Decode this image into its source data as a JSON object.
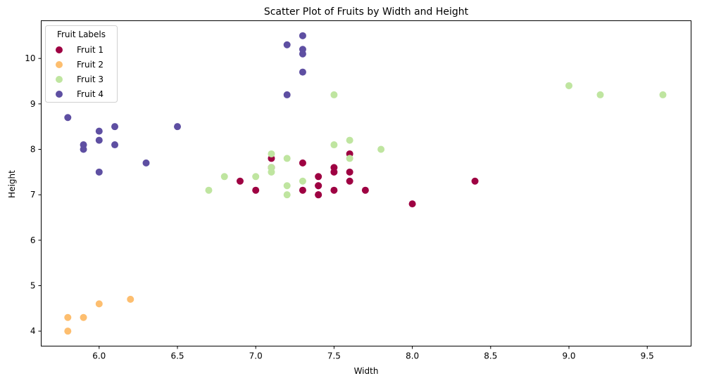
{
  "chart_data": {
    "type": "scatter",
    "title": "Scatter Plot of Fruits by Width and Height",
    "xlabel": "Width",
    "ylabel": "Height",
    "xlim": [
      5.63,
      9.78
    ],
    "ylim": [
      3.67,
      10.83
    ],
    "xticks": [
      "6.0",
      "6.5",
      "7.0",
      "7.5",
      "8.0",
      "8.5",
      "9.0",
      "9.5"
    ],
    "yticks": [
      "4",
      "5",
      "6",
      "7",
      "8",
      "9",
      "10"
    ],
    "grid": false,
    "legend": {
      "title": "Fruit Labels",
      "placement": "top-left"
    },
    "series": [
      {
        "name": "Fruit 1",
        "color": "#9e0142",
        "points": [
          [
            6.9,
            7.3
          ],
          [
            7.0,
            7.1
          ],
          [
            7.1,
            7.8
          ],
          [
            7.1,
            7.6
          ],
          [
            7.3,
            7.7
          ],
          [
            7.3,
            7.1
          ],
          [
            7.4,
            7.4
          ],
          [
            7.4,
            7.2
          ],
          [
            7.4,
            7.2
          ],
          [
            7.4,
            7.0
          ],
          [
            7.4,
            7.0
          ],
          [
            7.5,
            7.6
          ],
          [
            7.5,
            7.5
          ],
          [
            7.5,
            7.1
          ],
          [
            7.6,
            7.9
          ],
          [
            7.6,
            7.5
          ],
          [
            7.6,
            7.3
          ],
          [
            7.7,
            7.1
          ],
          [
            8.0,
            6.8
          ],
          [
            8.4,
            7.3
          ]
        ]
      },
      {
        "name": "Fruit 2",
        "color": "#fdbe6f",
        "points": [
          [
            5.8,
            4.3
          ],
          [
            5.8,
            4.0
          ],
          [
            5.9,
            4.3
          ],
          [
            6.0,
            4.6
          ],
          [
            6.2,
            4.7
          ]
        ]
      },
      {
        "name": "Fruit 3",
        "color": "#bfe5a0",
        "points": [
          [
            6.7,
            7.1
          ],
          [
            6.8,
            7.4
          ],
          [
            7.0,
            7.4
          ],
          [
            7.1,
            7.9
          ],
          [
            7.1,
            7.6
          ],
          [
            7.1,
            7.5
          ],
          [
            7.2,
            7.8
          ],
          [
            7.2,
            7.2
          ],
          [
            7.2,
            7.0
          ],
          [
            7.3,
            7.3
          ],
          [
            7.5,
            9.2
          ],
          [
            7.5,
            8.1
          ],
          [
            7.6,
            8.2
          ],
          [
            7.6,
            7.8
          ],
          [
            7.8,
            8.0
          ],
          [
            9.0,
            9.4
          ],
          [
            9.2,
            9.2
          ],
          [
            9.6,
            9.2
          ]
        ]
      },
      {
        "name": "Fruit 4",
        "color": "#5e4fa2",
        "points": [
          [
            5.8,
            8.7
          ],
          [
            5.9,
            8.1
          ],
          [
            5.9,
            8.0
          ],
          [
            6.0,
            8.4
          ],
          [
            6.0,
            8.2
          ],
          [
            6.0,
            7.5
          ],
          [
            6.1,
            8.5
          ],
          [
            6.1,
            8.1
          ],
          [
            6.3,
            7.7
          ],
          [
            6.5,
            8.5
          ],
          [
            7.2,
            10.3
          ],
          [
            7.2,
            9.2
          ],
          [
            7.3,
            10.5
          ],
          [
            7.3,
            10.2
          ],
          [
            7.3,
            10.1
          ],
          [
            7.3,
            9.7
          ]
        ]
      }
    ]
  }
}
